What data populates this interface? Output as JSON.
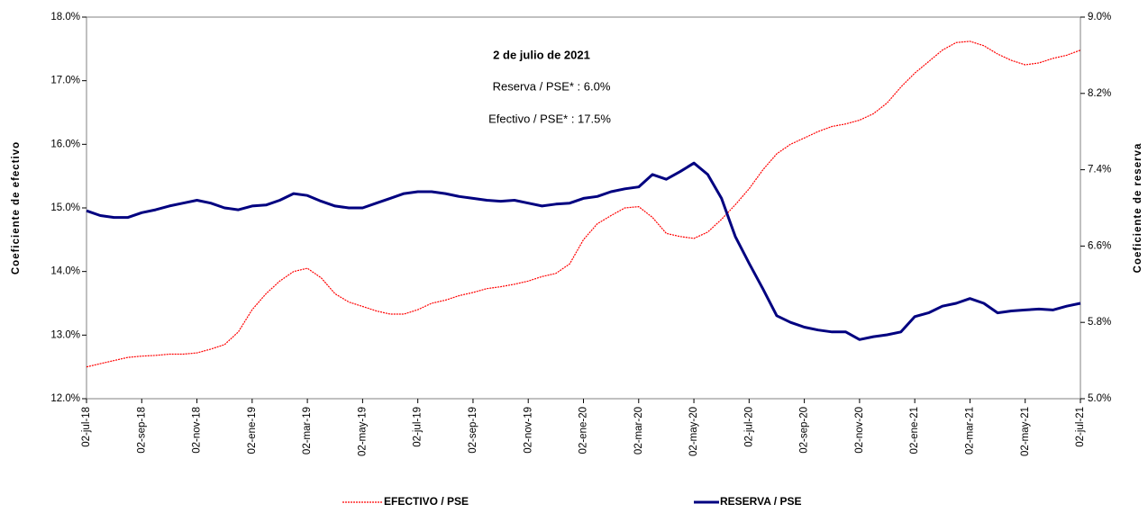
{
  "chart_data": {
    "type": "line",
    "annotations": [
      "2 de julio de 2021",
      "Reserva / PSE* :   6.0%",
      "Efectivo / PSE* : 17.5%"
    ],
    "y_label": "Coeficiente de efectivo",
    "y2_label": "Coeficiente de reserva",
    "categories": [
      "02-jul-18",
      null,
      null,
      null,
      "02-sep-18",
      null,
      null,
      null,
      "02-nov-18",
      null,
      null,
      null,
      "02-ene-19",
      null,
      null,
      null,
      "02-mar-19",
      null,
      null,
      null,
      "02-may-19",
      null,
      null,
      null,
      "02-jul-19",
      null,
      null,
      null,
      "02-sep-19",
      null,
      null,
      null,
      "02-nov-19",
      null,
      null,
      null,
      "02-ene-20",
      null,
      null,
      null,
      "02-mar-20",
      null,
      null,
      null,
      "02-may-20",
      null,
      null,
      null,
      "02-jul-20",
      null,
      null,
      null,
      "02-sep-20",
      null,
      null,
      null,
      "02-nov-20",
      null,
      null,
      null,
      "02-ene-21",
      null,
      null,
      null,
      "02-mar-21",
      null,
      null,
      null,
      "02-may-21",
      null,
      null,
      null,
      "02-jul-21"
    ],
    "ylim": [
      12,
      18
    ],
    "yticks": [
      {
        "value": 12,
        "label": "12.0%"
      },
      {
        "value": 13,
        "label": "13.0%"
      },
      {
        "value": 14,
        "label": "14.0%"
      },
      {
        "value": 15,
        "label": "15.0%"
      },
      {
        "value": 16,
        "label": "16.0%"
      },
      {
        "value": 17,
        "label": "17.0%"
      },
      {
        "value": 18,
        "label": "18.0%"
      }
    ],
    "y2lim": [
      5,
      9
    ],
    "y2ticks": [
      {
        "value": 5,
        "label": "5.0%"
      },
      {
        "value": 5.8,
        "label": "5.8%"
      },
      {
        "value": 6.6,
        "label": "6.6%"
      },
      {
        "value": 7.4,
        "label": "7.4%"
      },
      {
        "value": 8.2,
        "label": "8.2%"
      },
      {
        "value": 9,
        "label": "9.0%"
      }
    ],
    "series": [
      {
        "name": "EFECTIVO / PSE",
        "color": "#ff0000",
        "axis": "y",
        "values": [
          12.5,
          12.55,
          12.6,
          12.65,
          12.67,
          12.68,
          12.7,
          12.7,
          12.72,
          12.78,
          12.85,
          13.05,
          13.4,
          13.65,
          13.85,
          14.0,
          14.05,
          13.9,
          13.65,
          13.52,
          13.45,
          13.38,
          13.33,
          13.33,
          13.4,
          13.5,
          13.55,
          13.62,
          13.67,
          13.73,
          13.76,
          13.8,
          13.85,
          13.92,
          13.97,
          14.12,
          14.5,
          14.75,
          14.88,
          15.0,
          15.02,
          14.85,
          14.6,
          14.55,
          14.52,
          14.62,
          14.82,
          15.05,
          15.3,
          15.6,
          15.85,
          16.0,
          16.1,
          16.2,
          16.28,
          16.32,
          16.38,
          16.48,
          16.65,
          16.9,
          17.12,
          17.3,
          17.48,
          17.6,
          17.62,
          17.55,
          17.42,
          17.32,
          17.25,
          17.28,
          17.35,
          17.4,
          17.48
        ]
      },
      {
        "name": "RESERVA / PSE",
        "color": "#000080",
        "axis": "y2",
        "values": [
          6.97,
          6.92,
          6.9,
          6.9,
          6.95,
          6.98,
          7.02,
          7.05,
          7.08,
          7.05,
          7.0,
          6.98,
          7.02,
          7.03,
          7.08,
          7.15,
          7.13,
          7.07,
          7.02,
          7.0,
          7.0,
          7.05,
          7.1,
          7.15,
          7.17,
          7.17,
          7.15,
          7.12,
          7.1,
          7.08,
          7.07,
          7.08,
          7.05,
          7.02,
          7.04,
          7.05,
          7.1,
          7.12,
          7.17,
          7.2,
          7.22,
          7.35,
          7.3,
          7.38,
          7.47,
          7.35,
          7.1,
          6.7,
          6.42,
          6.15,
          5.87,
          5.8,
          5.75,
          5.72,
          5.7,
          5.7,
          5.62,
          5.65,
          5.67,
          5.7,
          5.86,
          5.9,
          5.97,
          6.0,
          6.05,
          6.0,
          5.9,
          5.92,
          5.93,
          5.94,
          5.93,
          5.97,
          6.0
        ]
      }
    ]
  }
}
